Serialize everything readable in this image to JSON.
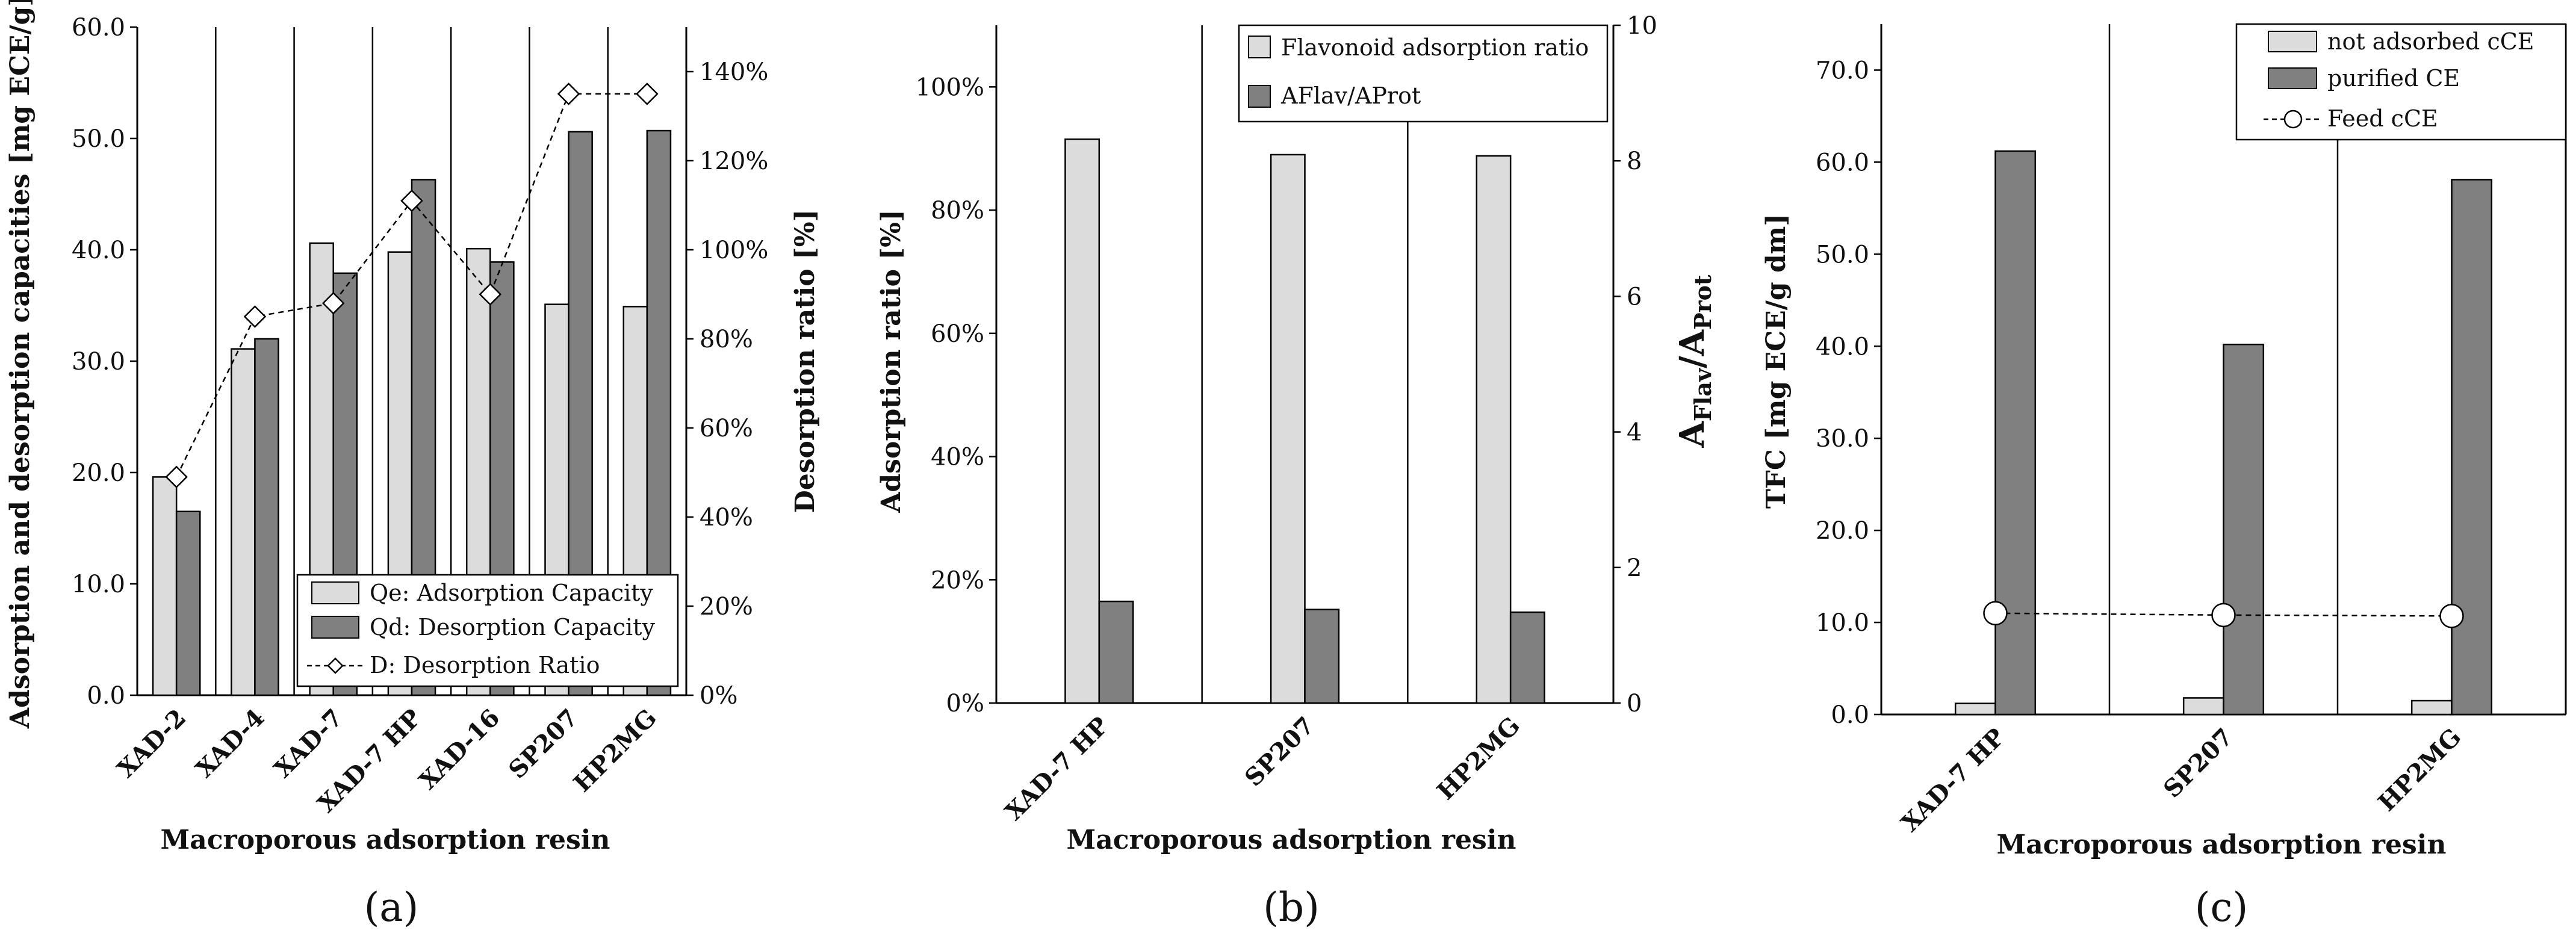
{
  "panel_labels": [
    "(a)",
    "(b)",
    "(c)"
  ],
  "chart_data": [
    {
      "type": "bar",
      "categories": [
        "XAD-2",
        "XAD-4",
        "XAD-7",
        "XAD-7 HP",
        "XAD-16",
        "SP207",
        "HP2MG"
      ],
      "series": [
        {
          "name": "Qe: Adsorption Capacity",
          "axis": "left",
          "color": "#dcdcdc",
          "values": [
            19.6,
            31.1,
            40.6,
            39.8,
            40.1,
            35.1,
            34.9
          ]
        },
        {
          "name": "Qd: Desorption Capacity",
          "axis": "left",
          "color": "#808080",
          "values": [
            16.5,
            32.0,
            37.9,
            46.3,
            38.9,
            50.6,
            50.7
          ]
        },
        {
          "name": "D: Desorption Ratio",
          "axis": "right",
          "type": "line",
          "marker": "diamond",
          "values": [
            0.49,
            0.85,
            0.88,
            1.11,
            0.9,
            1.35,
            1.35
          ]
        }
      ],
      "xlabel": "Macroporous adsorption resin",
      "ylabel": "Adsorption and desorption capacities [mg ECE/g]",
      "y2label": "Desorption ratio [%]",
      "ylim": [
        0,
        60
      ],
      "yticks": [
        "0.0",
        "10.0",
        "20.0",
        "30.0",
        "40.0",
        "50.0",
        "60.0"
      ],
      "y2lim": [
        0,
        1.5
      ],
      "y2ticks": [
        "0%",
        "20%",
        "40%",
        "60%",
        "80%",
        "100%",
        "120%",
        "140%"
      ],
      "legend_position": "bottom-right",
      "grid": false
    },
    {
      "type": "bar",
      "categories": [
        "XAD-7 HP",
        "SP207",
        "HP2MG"
      ],
      "series": [
        {
          "name": "Flavonoid adsorption ratio",
          "axis": "left",
          "color": "#dcdcdc",
          "values": [
            0.915,
            0.89,
            0.888
          ]
        },
        {
          "name": "AFlav/AProt",
          "axis": "right",
          "color": "#808080",
          "values": [
            1.5,
            1.38,
            1.34
          ]
        }
      ],
      "xlabel": "Macroporous adsorption resin",
      "ylabel": "Adsorption  ratio [%]",
      "y2label": {
        "base1": "A",
        "sub1": "Flav",
        "mid": "/A",
        "sub2": "Prot"
      },
      "ylim": [
        0,
        1.1
      ],
      "yticks": [
        "0%",
        "20%",
        "40%",
        "60%",
        "80%",
        "100%"
      ],
      "y2lim": [
        0,
        10
      ],
      "y2ticks": [
        "0",
        "2",
        "4",
        "6",
        "8",
        "10"
      ],
      "legend_position": "top-right",
      "grid": false
    },
    {
      "type": "bar",
      "categories": [
        "XAD-7 HP",
        "SP207",
        "HP2MG"
      ],
      "series": [
        {
          "name": "not adsorbed cCE",
          "color": "#dcdcdc",
          "values": [
            1.2,
            1.8,
            1.5
          ]
        },
        {
          "name": "purified CE",
          "color": "#808080",
          "values": [
            61.2,
            40.2,
            58.1
          ]
        },
        {
          "name": "Feed cCE",
          "type": "line",
          "marker": "circle",
          "values": [
            11.0,
            10.8,
            10.7
          ]
        }
      ],
      "xlabel": "Macroporous adsorption resin",
      "ylabel": "TFC [mg ECE/g dm]",
      "ylim": [
        0,
        75
      ],
      "yticks": [
        "0.0",
        "10.0",
        "20.0",
        "30.0",
        "40.0",
        "50.0",
        "60.0",
        "70.0"
      ],
      "legend_position": "top-right",
      "grid": false
    }
  ]
}
